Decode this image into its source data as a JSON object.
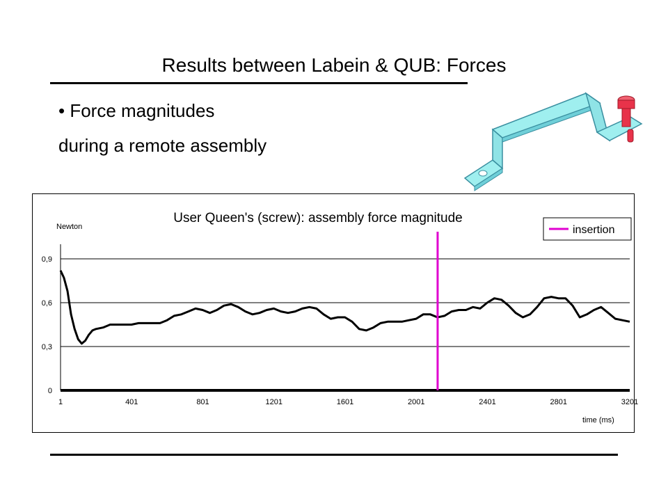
{
  "slide": {
    "title": "Results between Labein & QUB: Forces",
    "bullet": "• Force magnitudes",
    "bullet_cont": "during a remote assembly"
  },
  "colors": {
    "part_fill": "#9fefef",
    "part_stroke": "#3a8fa0",
    "screw_fill": "#e8334a",
    "insertion_line": "#e000d0",
    "series_line": "#000000"
  },
  "icons": {
    "part": "bracket-and-screw-illustration"
  },
  "chart_data": {
    "type": "line",
    "title": "User Queen's (screw): assembly force magnitude",
    "ylabel": "Newton",
    "xlabel": "time (ms)",
    "ylim": [
      0,
      1.0
    ],
    "xlim": [
      1,
      3201
    ],
    "yticks": [
      0,
      0.3,
      0.6,
      0.9
    ],
    "ytick_labels": [
      "0",
      "0,3",
      "0,6",
      "0,9"
    ],
    "xticks": [
      1,
      401,
      801,
      1201,
      1601,
      2001,
      2401,
      2801,
      3201
    ],
    "xtick_labels": [
      "1",
      "401",
      "801",
      "1201",
      "1601",
      "2001",
      "2401",
      "2801",
      "3201"
    ],
    "grid": true,
    "legend": {
      "position": "top-right",
      "entries": [
        "insertion"
      ]
    },
    "insertion_x": 2121,
    "series": [
      {
        "x": [
          1,
          20,
          40,
          60,
          80,
          100,
          120,
          140,
          160,
          180,
          200,
          240,
          280,
          320,
          360,
          400,
          440,
          480,
          520,
          560,
          600,
          640,
          680,
          720,
          760,
          800,
          840,
          880,
          920,
          960,
          1000,
          1040,
          1080,
          1120,
          1160,
          1200,
          1240,
          1280,
          1320,
          1360,
          1400,
          1440,
          1480,
          1520,
          1560,
          1600,
          1640,
          1680,
          1720,
          1760,
          1800,
          1840,
          1880,
          1920,
          1960,
          2000,
          2040,
          2080,
          2120,
          2160,
          2200,
          2240,
          2280,
          2320,
          2360,
          2400,
          2440,
          2480,
          2520,
          2560,
          2600,
          2640,
          2680,
          2720,
          2760,
          2800,
          2840,
          2880,
          2920,
          2960,
          3000,
          3040,
          3080,
          3120,
          3160,
          3201
        ],
        "y": [
          0.82,
          0.77,
          0.68,
          0.52,
          0.42,
          0.35,
          0.32,
          0.34,
          0.38,
          0.41,
          0.42,
          0.43,
          0.45,
          0.45,
          0.45,
          0.45,
          0.46,
          0.46,
          0.46,
          0.46,
          0.48,
          0.51,
          0.52,
          0.54,
          0.56,
          0.55,
          0.53,
          0.55,
          0.58,
          0.59,
          0.57,
          0.54,
          0.52,
          0.53,
          0.55,
          0.56,
          0.54,
          0.53,
          0.54,
          0.56,
          0.57,
          0.56,
          0.52,
          0.49,
          0.5,
          0.5,
          0.47,
          0.42,
          0.41,
          0.43,
          0.46,
          0.47,
          0.47,
          0.47,
          0.48,
          0.49,
          0.52,
          0.52,
          0.5,
          0.51,
          0.54,
          0.55,
          0.55,
          0.57,
          0.56,
          0.6,
          0.63,
          0.62,
          0.58,
          0.53,
          0.5,
          0.52,
          0.57,
          0.63,
          0.64,
          0.63,
          0.63,
          0.58,
          0.5,
          0.52,
          0.55,
          0.57,
          0.53,
          0.49,
          0.48,
          0.47
        ]
      }
    ]
  }
}
